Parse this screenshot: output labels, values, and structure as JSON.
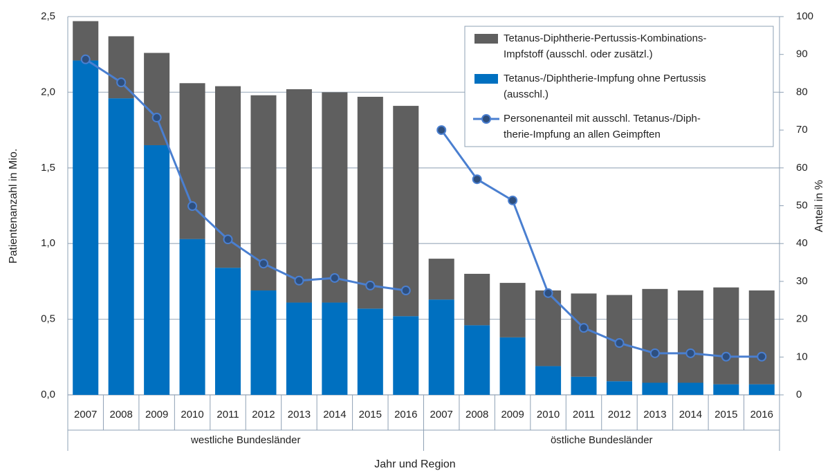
{
  "chart_data": {
    "type": "bar",
    "stacked": true,
    "grid": true,
    "xlabel": "Jahr und Region",
    "ylabel": "Patientenanzahl in Mio.",
    "y2label": "Anteil in %",
    "legend": "top-right",
    "groups": [
      {
        "name": "westliche Bundesländer",
        "categories": [
          "2007",
          "2008",
          "2009",
          "2010",
          "2011",
          "2012",
          "2013",
          "2014",
          "2015",
          "2016"
        ]
      },
      {
        "name": "östliche Bundesländer",
        "categories": [
          "2007",
          "2008",
          "2009",
          "2010",
          "2011",
          "2012",
          "2013",
          "2014",
          "2015",
          "2016"
        ]
      }
    ],
    "series": [
      {
        "name": [
          "Tetanus-Diphtherie-Pertussis-Kombinations-",
          "Impfstoff (ausschl. oder zusätzl.)"
        ],
        "type": "bar",
        "color": "#5f5f5f",
        "values": [
          [
            0.26,
            0.41,
            0.61,
            1.03,
            1.2,
            1.29,
            1.41,
            1.39,
            1.4,
            1.39
          ],
          [
            0.27,
            0.34,
            0.36,
            0.5,
            0.55,
            0.57,
            0.62,
            0.61,
            0.64,
            0.62
          ]
        ]
      },
      {
        "name": [
          "Tetanus-/Diphtherie-Impfung ohne Pertussis",
          "(ausschl.)"
        ],
        "type": "bar",
        "color": "#0070c0",
        "values": [
          [
            2.21,
            1.96,
            1.65,
            1.03,
            0.84,
            0.69,
            0.61,
            0.61,
            0.57,
            0.52
          ],
          [
            0.63,
            0.46,
            0.38,
            0.19,
            0.12,
            0.09,
            0.08,
            0.08,
            0.07,
            0.07
          ]
        ]
      },
      {
        "name": [
          "Personenanteil mit ausschl. Tetanus-/Diph-",
          "therie-Impfung an allen Geimpften"
        ],
        "type": "line",
        "axis": "y2",
        "color": "#4a7fd0",
        "marker_color": "#2e4f7e",
        "values": [
          [
            88.7,
            82.6,
            73.3,
            49.9,
            41.1,
            34.7,
            30.2,
            30.9,
            28.9,
            27.6
          ],
          [
            70.0,
            57.0,
            51.4,
            26.9,
            17.7,
            13.7,
            11.0,
            11.0,
            10.1,
            10.1
          ]
        ]
      }
    ],
    "ylim": [
      0,
      2.5
    ],
    "yticks": [
      {
        "value": 0,
        "label": "0,0"
      },
      {
        "value": 0.5,
        "label": "0,5"
      },
      {
        "value": 1,
        "label": "1,0"
      },
      {
        "value": 1.5,
        "label": "1,5"
      },
      {
        "value": 2,
        "label": "2,0"
      },
      {
        "value": 2.5,
        "label": "2,5"
      }
    ],
    "y2lim": [
      0,
      100
    ],
    "y2ticks": [
      0,
      10,
      20,
      30,
      40,
      50,
      60,
      70,
      80,
      90,
      100
    ]
  }
}
